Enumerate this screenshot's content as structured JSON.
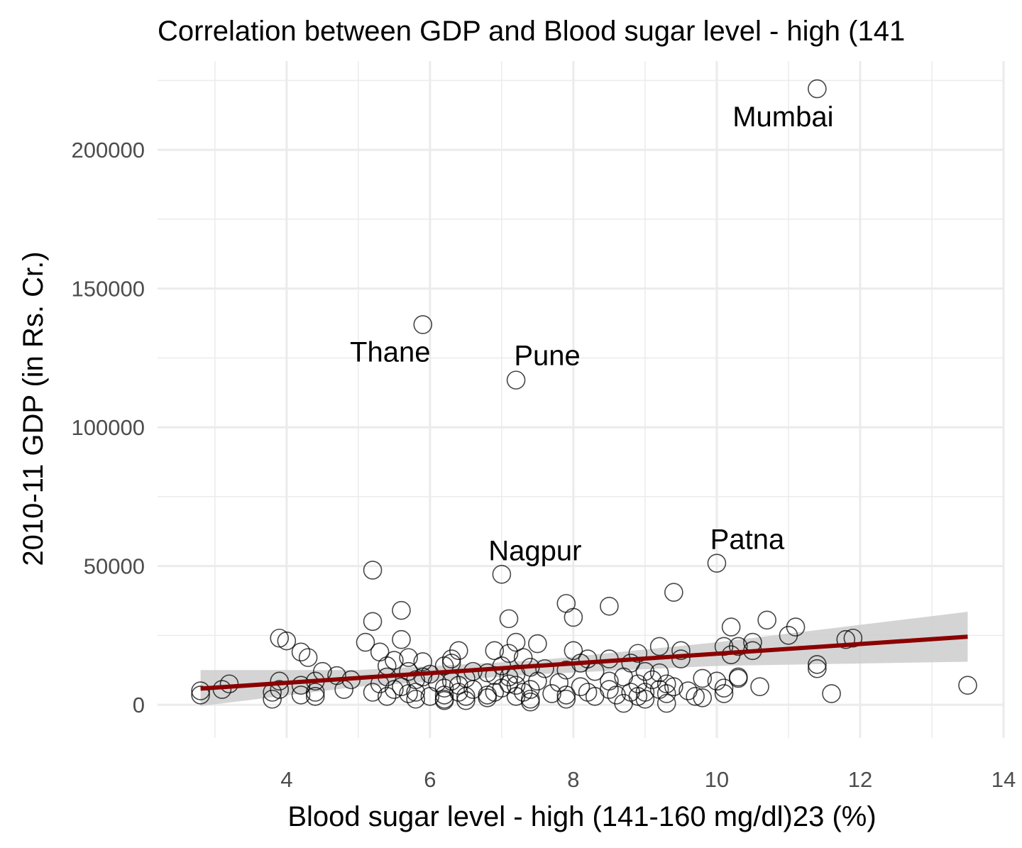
{
  "chart_data": {
    "type": "scatter",
    "title": "Correlation between GDP and Blood sugar level - high (141",
    "xlabel": "Blood sugar level - high (141-160 mg/dl)23 (%)",
    "ylabel": "2010-11 GDP (in Rs. Cr.)",
    "xlim": [
      2.2,
      14.0
    ],
    "ylim": [
      -12000,
      232000
    ],
    "x_ticks": [
      4,
      6,
      8,
      10,
      12,
      14
    ],
    "y_ticks": [
      0,
      50000,
      100000,
      150000,
      200000
    ],
    "x_tick_labels": [
      "4",
      "6",
      "8",
      "10",
      "12",
      "14"
    ],
    "y_tick_labels": [
      "0",
      "50000",
      "100000",
      "150000",
      "200000"
    ],
    "grid": true,
    "legend": "none",
    "colors": {
      "points": "#000000",
      "trend_line": "#8b0000",
      "confidence_band": "#cccccc",
      "grid": "#ebebeb"
    },
    "labeled_points": [
      {
        "name": "Mumbai",
        "x": 11.4,
        "y": 222000
      },
      {
        "name": "Thane",
        "x": 5.9,
        "y": 137000
      },
      {
        "name": "Pune",
        "x": 7.2,
        "y": 117000
      },
      {
        "name": "Nagpur",
        "x": 7.0,
        "y": 47000
      },
      {
        "name": "Patna",
        "x": 10.0,
        "y": 51000
      }
    ],
    "points": [
      [
        11.4,
        222000
      ],
      [
        5.9,
        137000
      ],
      [
        7.2,
        117000
      ],
      [
        7.0,
        47000
      ],
      [
        10.0,
        51000
      ],
      [
        5.2,
        48500
      ],
      [
        9.4,
        40500
      ],
      [
        7.9,
        36500
      ],
      [
        8.5,
        35500
      ],
      [
        5.6,
        34000
      ],
      [
        8.0,
        31500
      ],
      [
        7.1,
        31000
      ],
      [
        5.2,
        30000
      ],
      [
        10.7,
        30500
      ],
      [
        10.2,
        28000
      ],
      [
        11.1,
        28000
      ],
      [
        11.0,
        25000
      ],
      [
        3.9,
        24000
      ],
      [
        4.0,
        23000
      ],
      [
        5.6,
        23500
      ],
      [
        7.2,
        22500
      ],
      [
        7.5,
        22000
      ],
      [
        11.8,
        23500
      ],
      [
        11.9,
        24000
      ],
      [
        10.5,
        22500
      ],
      [
        5.1,
        22500
      ],
      [
        9.2,
        21000
      ],
      [
        10.1,
        21000
      ],
      [
        10.3,
        21000
      ],
      [
        6.4,
        19500
      ],
      [
        6.9,
        19500
      ],
      [
        8.0,
        19500
      ],
      [
        9.5,
        19500
      ],
      [
        10.5,
        19500
      ],
      [
        4.2,
        19000
      ],
      [
        5.3,
        19000
      ],
      [
        7.1,
        18500
      ],
      [
        8.9,
        18500
      ],
      [
        10.2,
        18000
      ],
      [
        4.3,
        17000
      ],
      [
        5.7,
        17000
      ],
      [
        6.3,
        16500
      ],
      [
        7.3,
        17000
      ],
      [
        8.2,
        16500
      ],
      [
        8.5,
        16500
      ],
      [
        9.5,
        16500
      ],
      [
        5.5,
        16000
      ],
      [
        5.9,
        15500
      ],
      [
        6.3,
        15000
      ],
      [
        6.2,
        14000
      ],
      [
        7.0,
        14000
      ],
      [
        8.1,
        15000
      ],
      [
        8.8,
        15000
      ],
      [
        5.4,
        14000
      ],
      [
        7.4,
        13500
      ],
      [
        7.6,
        13000
      ],
      [
        7.9,
        12500
      ],
      [
        11.4,
        14500
      ],
      [
        11.4,
        13000
      ],
      [
        4.5,
        12000
      ],
      [
        5.7,
        12000
      ],
      [
        6.6,
        12000
      ],
      [
        8.3,
        12000
      ],
      [
        9.0,
        12000
      ],
      [
        9.2,
        11500
      ],
      [
        6.0,
        11000
      ],
      [
        6.8,
        11500
      ],
      [
        7.2,
        11000
      ],
      [
        8.7,
        10000
      ],
      [
        9.8,
        9500
      ],
      [
        4.7,
        10500
      ],
      [
        5.4,
        10000
      ],
      [
        5.9,
        10000
      ],
      [
        6.5,
        9500
      ],
      [
        6.9,
        10500
      ],
      [
        7.1,
        10000
      ],
      [
        10.3,
        10000
      ],
      [
        10.3,
        9500
      ],
      [
        4.9,
        9000
      ],
      [
        5.8,
        9000
      ],
      [
        6.3,
        8500
      ],
      [
        7.5,
        8500
      ],
      [
        8.5,
        8500
      ],
      [
        9.1,
        9000
      ],
      [
        10.0,
        8500
      ],
      [
        3.9,
        8500
      ],
      [
        4.4,
        8500
      ],
      [
        5.3,
        7500
      ],
      [
        6.1,
        8000
      ],
      [
        7.1,
        7500
      ],
      [
        7.8,
        8000
      ],
      [
        8.9,
        7500
      ],
      [
        9.3,
        7500
      ],
      [
        3.2,
        7500
      ],
      [
        4.2,
        7000
      ],
      [
        5.6,
        6500
      ],
      [
        6.4,
        7000
      ],
      [
        7.2,
        7000
      ],
      [
        8.1,
        6500
      ],
      [
        9.4,
        6500
      ],
      [
        10.6,
        6500
      ],
      [
        13.5,
        7000
      ],
      [
        10.1,
        6000
      ],
      [
        3.1,
        5500
      ],
      [
        3.9,
        5500
      ],
      [
        4.8,
        5500
      ],
      [
        5.5,
        5500
      ],
      [
        6.2,
        6000
      ],
      [
        6.6,
        5500
      ],
      [
        7.0,
        6000
      ],
      [
        7.4,
        5500
      ],
      [
        8.5,
        5500
      ],
      [
        9.2,
        5500
      ],
      [
        9.6,
        5000
      ],
      [
        2.8,
        5000
      ],
      [
        3.8,
        4500
      ],
      [
        4.4,
        4500
      ],
      [
        5.2,
        4500
      ],
      [
        5.8,
        4500
      ],
      [
        6.4,
        4500
      ],
      [
        6.9,
        4500
      ],
      [
        7.3,
        4500
      ],
      [
        8.2,
        4500
      ],
      [
        8.8,
        4500
      ],
      [
        9.0,
        4500
      ],
      [
        10.1,
        4000
      ],
      [
        11.6,
        4000
      ],
      [
        2.8,
        3500
      ],
      [
        4.2,
        3500
      ],
      [
        5.7,
        4000
      ],
      [
        6.2,
        3500
      ],
      [
        6.8,
        3500
      ],
      [
        7.7,
        4000
      ],
      [
        7.9,
        3500
      ],
      [
        8.6,
        3500
      ],
      [
        9.3,
        4000
      ],
      [
        4.4,
        3000
      ],
      [
        5.4,
        3000
      ],
      [
        6.0,
        3000
      ],
      [
        6.5,
        3000
      ],
      [
        7.2,
        3000
      ],
      [
        8.3,
        3000
      ],
      [
        8.9,
        3000
      ],
      [
        9.7,
        3000
      ],
      [
        3.8,
        2000
      ],
      [
        5.8,
        2000
      ],
      [
        6.2,
        2000
      ],
      [
        6.8,
        2500
      ],
      [
        7.4,
        2000
      ],
      [
        7.9,
        2000
      ],
      [
        9.0,
        2000
      ],
      [
        9.8,
        2500
      ],
      [
        6.2,
        1500
      ],
      [
        6.5,
        1500
      ],
      [
        7.4,
        1000
      ],
      [
        8.7,
        500
      ],
      [
        9.3,
        500
      ]
    ],
    "trend_line": {
      "x_start": 2.8,
      "y_start": 5800,
      "x_end": 13.5,
      "y_end": 24500
    },
    "confidence_band": [
      {
        "x": 2.8,
        "lower": -500,
        "upper": 12500
      },
      {
        "x": 5.0,
        "lower": 6500,
        "upper": 12500
      },
      {
        "x": 7.5,
        "lower": 11000,
        "upper": 16000
      },
      {
        "x": 10.0,
        "lower": 14000,
        "upper": 22500
      },
      {
        "x": 13.5,
        "lower": 15500,
        "upper": 33500
      }
    ]
  }
}
